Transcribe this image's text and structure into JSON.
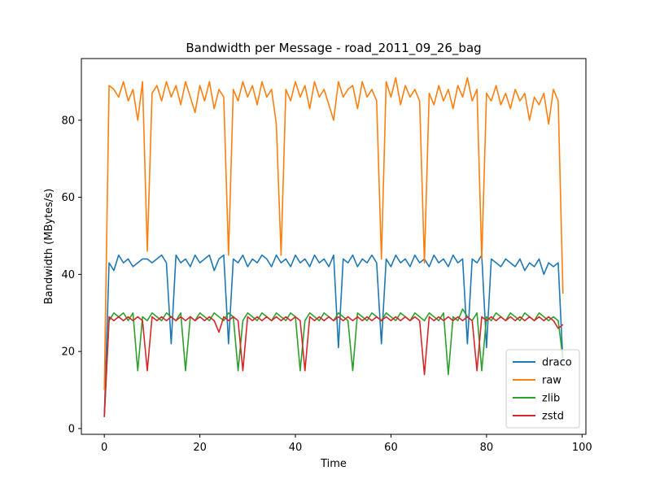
{
  "chart_data": {
    "type": "line",
    "title": "Bandwidth per Message - road_2011_09_26_bag",
    "xlabel": "Time",
    "ylabel": "Bandwidth (MBytes/s)",
    "xlim": [
      -4.8,
      100.8
    ],
    "ylim": [
      -1.5,
      96.0
    ],
    "xticks": [
      0,
      20,
      40,
      60,
      80,
      100
    ],
    "yticks": [
      0,
      20,
      40,
      60,
      80
    ],
    "xtick_labels": [
      "0",
      "20",
      "40",
      "60",
      "80",
      "100"
    ],
    "ytick_labels": [
      "0",
      "20",
      "40",
      "60",
      "80"
    ],
    "grid": false,
    "legend_position": "lower-right",
    "x": [
      0,
      1,
      2,
      3,
      4,
      5,
      6,
      7,
      8,
      9,
      10,
      11,
      12,
      13,
      14,
      15,
      16,
      17,
      18,
      19,
      20,
      21,
      22,
      23,
      24,
      25,
      26,
      27,
      28,
      29,
      30,
      31,
      32,
      33,
      34,
      35,
      36,
      37,
      38,
      39,
      40,
      41,
      42,
      43,
      44,
      45,
      46,
      47,
      48,
      49,
      50,
      51,
      52,
      53,
      54,
      55,
      56,
      57,
      58,
      59,
      60,
      61,
      62,
      63,
      64,
      65,
      66,
      67,
      68,
      69,
      70,
      71,
      72,
      73,
      74,
      75,
      76,
      77,
      78,
      79,
      80,
      81,
      82,
      83,
      84,
      85,
      86,
      87,
      88,
      89,
      90,
      91,
      92,
      93,
      94,
      95,
      96
    ],
    "series": [
      {
        "name": "draco",
        "color": "#1f77b4",
        "values": [
          3.0,
          43.0,
          41.0,
          45.0,
          43.0,
          44.0,
          42.0,
          43.0,
          44.0,
          44.0,
          43.0,
          44.0,
          45.0,
          43.0,
          22.0,
          45.0,
          43.0,
          44.0,
          42.0,
          45.0,
          43.0,
          44.0,
          45.0,
          41.0,
          44.0,
          45.0,
          22.0,
          44.0,
          43.0,
          45.0,
          42.0,
          44.0,
          43.0,
          45.0,
          44.0,
          42.0,
          45.0,
          43.0,
          44.0,
          42.0,
          45.0,
          43.0,
          44.0,
          42.0,
          45.0,
          43.0,
          44.0,
          42.0,
          45.0,
          21.0,
          44.0,
          43.0,
          45.0,
          42.0,
          44.0,
          43.0,
          45.0,
          43.0,
          22.0,
          44.0,
          42.0,
          45.0,
          43.0,
          44.0,
          42.0,
          45.0,
          43.0,
          44.0,
          42.0,
          45.0,
          43.0,
          44.0,
          42.0,
          45.0,
          43.0,
          44.0,
          22.0,
          44.0,
          43.0,
          45.0,
          21.0,
          44.0,
          43.0,
          42.0,
          44.0,
          43.0,
          42.0,
          44.0,
          41.0,
          43.0,
          42.0,
          44.0,
          40.0,
          43.0,
          42.0,
          43.0,
          17.0
        ]
      },
      {
        "name": "raw",
        "color": "#ff7f0e",
        "values": [
          10.0,
          89.0,
          88.0,
          86.0,
          90.0,
          85.0,
          88.0,
          80.0,
          90.0,
          46.0,
          87.0,
          89.0,
          85.0,
          90.0,
          86.0,
          89.0,
          84.0,
          90.0,
          86.0,
          82.0,
          89.0,
          85.0,
          90.0,
          83.0,
          88.0,
          86.0,
          45.0,
          88.0,
          85.0,
          90.0,
          86.0,
          89.0,
          84.0,
          90.0,
          86.0,
          88.0,
          79.0,
          45.0,
          88.0,
          85.0,
          90.0,
          86.0,
          89.0,
          83.0,
          90.0,
          86.0,
          88.0,
          84.0,
          80.0,
          90.0,
          86.0,
          88.0,
          89.0,
          83.0,
          90.0,
          86.0,
          88.0,
          85.0,
          44.0,
          90.0,
          86.0,
          91.0,
          84.0,
          89.0,
          86.0,
          88.0,
          85.0,
          43.0,
          87.0,
          84.0,
          89.0,
          85.0,
          88.0,
          83.0,
          89.0,
          86.0,
          91.0,
          85.0,
          88.0,
          44.0,
          87.0,
          85.0,
          89.0,
          84.0,
          87.0,
          83.0,
          88.0,
          85.0,
          87.0,
          80.0,
          86.0,
          84.0,
          87.0,
          79.0,
          88.0,
          85.0,
          35.0
        ]
      },
      {
        "name": "zlib",
        "color": "#2ca02c",
        "values": [
          3.0,
          28.0,
          30.0,
          29.0,
          30.0,
          28.0,
          30.0,
          15.0,
          29.0,
          28.0,
          30.0,
          29.0,
          28.0,
          30.0,
          29.0,
          28.0,
          30.0,
          15.0,
          29.0,
          28.0,
          30.0,
          29.0,
          28.0,
          30.0,
          29.0,
          28.0,
          30.0,
          29.0,
          15.0,
          28.0,
          30.0,
          29.0,
          28.0,
          30.0,
          29.0,
          28.0,
          30.0,
          29.0,
          28.0,
          30.0,
          29.0,
          15.0,
          28.0,
          30.0,
          29.0,
          28.0,
          30.0,
          29.0,
          28.0,
          30.0,
          29.0,
          28.0,
          15.0,
          30.0,
          29.0,
          28.0,
          30.0,
          29.0,
          28.0,
          30.0,
          29.0,
          28.0,
          30.0,
          29.0,
          28.0,
          30.0,
          29.0,
          28.0,
          30.0,
          29.0,
          28.0,
          30.0,
          14.0,
          29.0,
          28.0,
          31.0,
          29.0,
          28.0,
          30.0,
          15.0,
          29.0,
          28.0,
          30.0,
          29.0,
          28.0,
          30.0,
          29.0,
          28.0,
          30.0,
          29.0,
          28.0,
          30.0,
          29.0,
          28.0,
          29.0,
          28.0,
          18.0
        ]
      },
      {
        "name": "zstd",
        "color": "#d62728",
        "values": [
          3.0,
          29.0,
          28.0,
          29.0,
          28.0,
          29.0,
          28.0,
          29.0,
          28.0,
          15.0,
          29.0,
          28.0,
          29.0,
          28.0,
          29.0,
          28.0,
          29.0,
          28.0,
          29.0,
          28.0,
          29.0,
          28.0,
          29.0,
          28.0,
          25.0,
          29.0,
          28.0,
          29.0,
          28.0,
          15.0,
          29.0,
          28.0,
          29.0,
          28.0,
          29.0,
          28.0,
          29.0,
          28.0,
          29.0,
          28.0,
          29.0,
          28.0,
          15.0,
          29.0,
          28.0,
          29.0,
          28.0,
          29.0,
          28.0,
          29.0,
          28.0,
          29.0,
          28.0,
          29.0,
          28.0,
          29.0,
          28.0,
          29.0,
          28.0,
          29.0,
          28.0,
          29.0,
          28.0,
          29.0,
          28.0,
          29.0,
          28.0,
          14.0,
          29.0,
          28.0,
          29.0,
          28.0,
          29.0,
          28.0,
          29.0,
          28.0,
          29.0,
          28.0,
          15.0,
          29.0,
          28.0,
          29.0,
          28.0,
          29.0,
          28.0,
          29.0,
          28.0,
          29.0,
          28.0,
          29.0,
          28.0,
          29.0,
          28.0,
          29.0,
          28.0,
          26.0,
          27.0
        ]
      }
    ]
  }
}
